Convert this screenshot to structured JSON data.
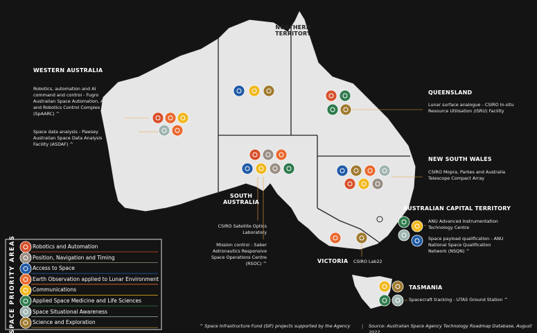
{
  "states": [
    {
      "name": "WESTERN AUSTRALIA",
      "projects": [
        "Robotics, automation and AI command and control - Fugro Australian Space Automation, AI and Robotics Control Complex (SpAARC) ^",
        "Space data analysis - Pawsey Australian Space Data Analysis Facility (ASDAF) ^"
      ]
    },
    {
      "name": "NORTHERN TERRITORY",
      "projects": []
    },
    {
      "name": "QUEENSLAND",
      "projects": [
        "Lunar surface analogue - CSIRO In-situ Resource Utilisation (ISRU) Facility"
      ]
    },
    {
      "name": "NEW SOUTH WALES",
      "projects": [
        "CSIRO Mopra, Parkes and Australia Telescope Compact Array"
      ]
    },
    {
      "name": "AUSTRALIAN CAPITAL TERRITORY",
      "projects": [
        "ANU Advanced Instrumentation Technology Centre",
        "Space payload qualification - ANU National Space Qualification Network (NSQN) ^"
      ]
    },
    {
      "name": "SOUTH AUSTRALIA",
      "projects": [
        "CSIRO Satellite Optics Laboratory",
        "Mission control - Saber Astronautics Responsive Space Operations Centre (RSOC) ^"
      ]
    },
    {
      "name": "VICTORIA",
      "projects": [
        "CSIRO Lab22"
      ]
    },
    {
      "name": "TASMANIA",
      "projects": [
        "Spacecraft tracking - UTAS Ground Station ^"
      ]
    }
  ],
  "legend": {
    "title": "SPACE PRIORITY AREAS",
    "items": [
      {
        "name": "Robotics and Automation",
        "color": "#d6502c"
      },
      {
        "name": "Position, Navigation and Timing",
        "color": "#9a8e84"
      },
      {
        "name": "Access to Space",
        "color": "#1f5aa6"
      },
      {
        "name": "Earth Observation applied to Lunar Environment",
        "color": "#e9692f"
      },
      {
        "name": "Communications",
        "color": "#f1b81d"
      },
      {
        "name": "Applied Space Medicine and Life Sciences",
        "color": "#2f7b4d"
      },
      {
        "name": "Space Situational Awareness",
        "color": "#9fb4b0"
      },
      {
        "name": "Science and Exploration",
        "color": "#a07a2f"
      }
    ]
  },
  "footer": {
    "note": "^ Space Infrastructure Fund (SIF) projects supported by the Agency",
    "source": "Source: Australian Space Agency Technology Roadmap Database, August 2022"
  }
}
